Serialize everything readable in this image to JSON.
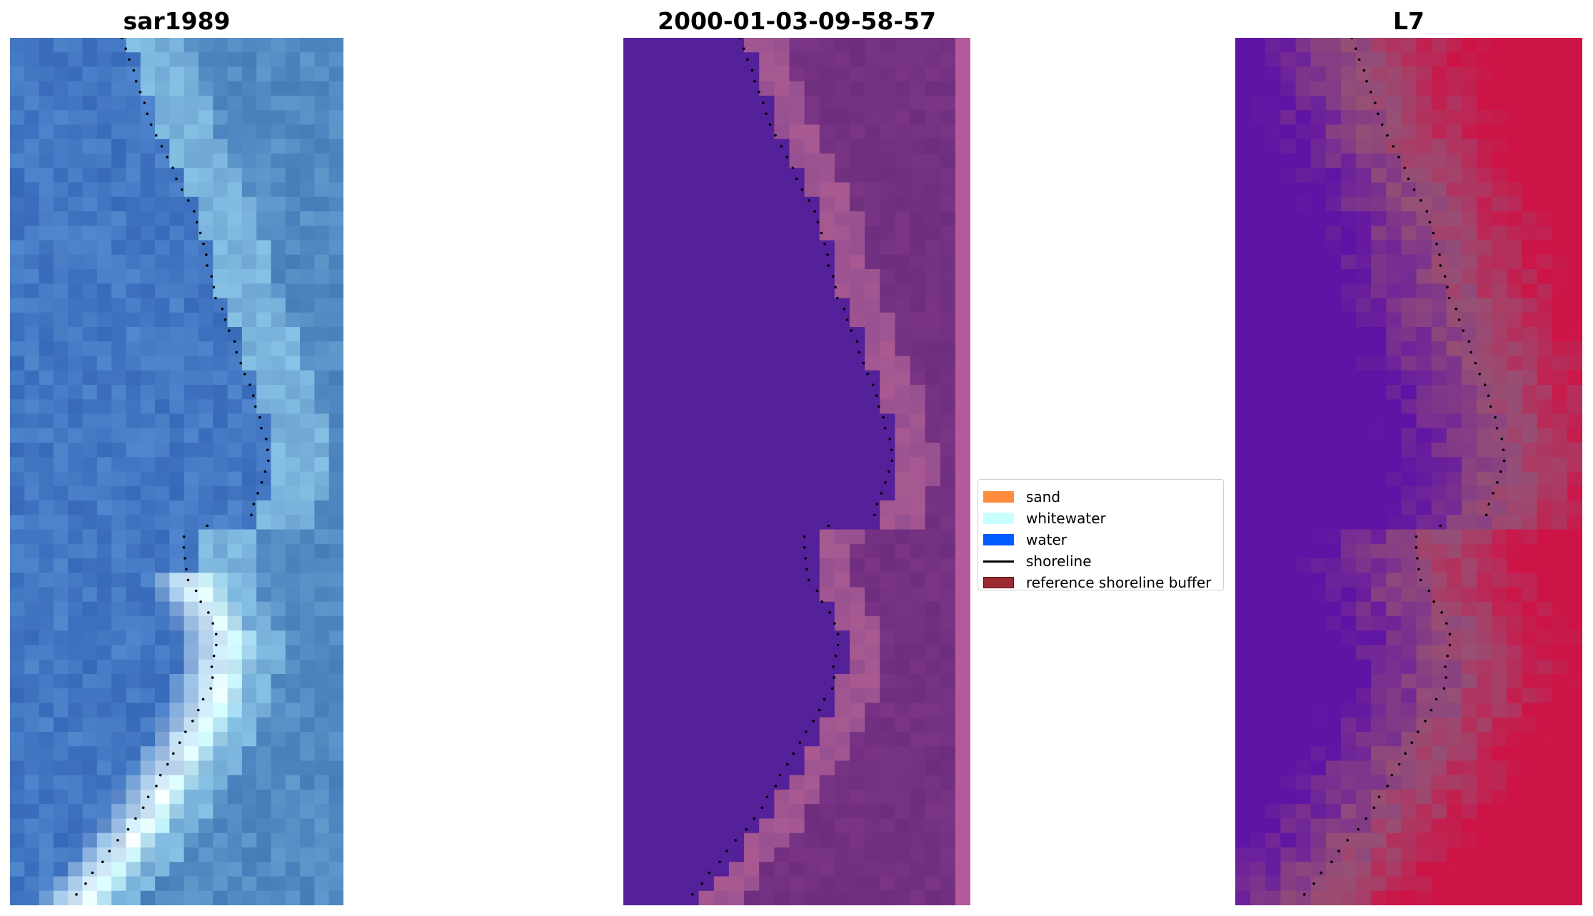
{
  "panels": [
    {
      "title": "sar1989",
      "kind": "rgb"
    },
    {
      "title": "2000-01-03-09-58-57",
      "kind": "classified"
    },
    {
      "title": "L7",
      "kind": "index"
    }
  ],
  "legend": {
    "items": [
      {
        "label": "sand",
        "type": "patch",
        "color": "#ff8c3c"
      },
      {
        "label": "whitewater",
        "type": "patch",
        "color": "#c8ffff"
      },
      {
        "label": "water",
        "type": "patch",
        "color": "#005bff"
      },
      {
        "label": "shoreline",
        "type": "line",
        "color": "#000000"
      },
      {
        "label": "reference shoreline buffer",
        "type": "patch",
        "color": "#9b2d32",
        "border": "#5c1014"
      }
    ]
  },
  "colors": {
    "classified_water_purple": "#54219a",
    "classified_land_magenta": "#6e2d84",
    "index_high": "#c8003c",
    "index_low": "#5a0ca0",
    "shoreline_dots": "#000000"
  }
}
